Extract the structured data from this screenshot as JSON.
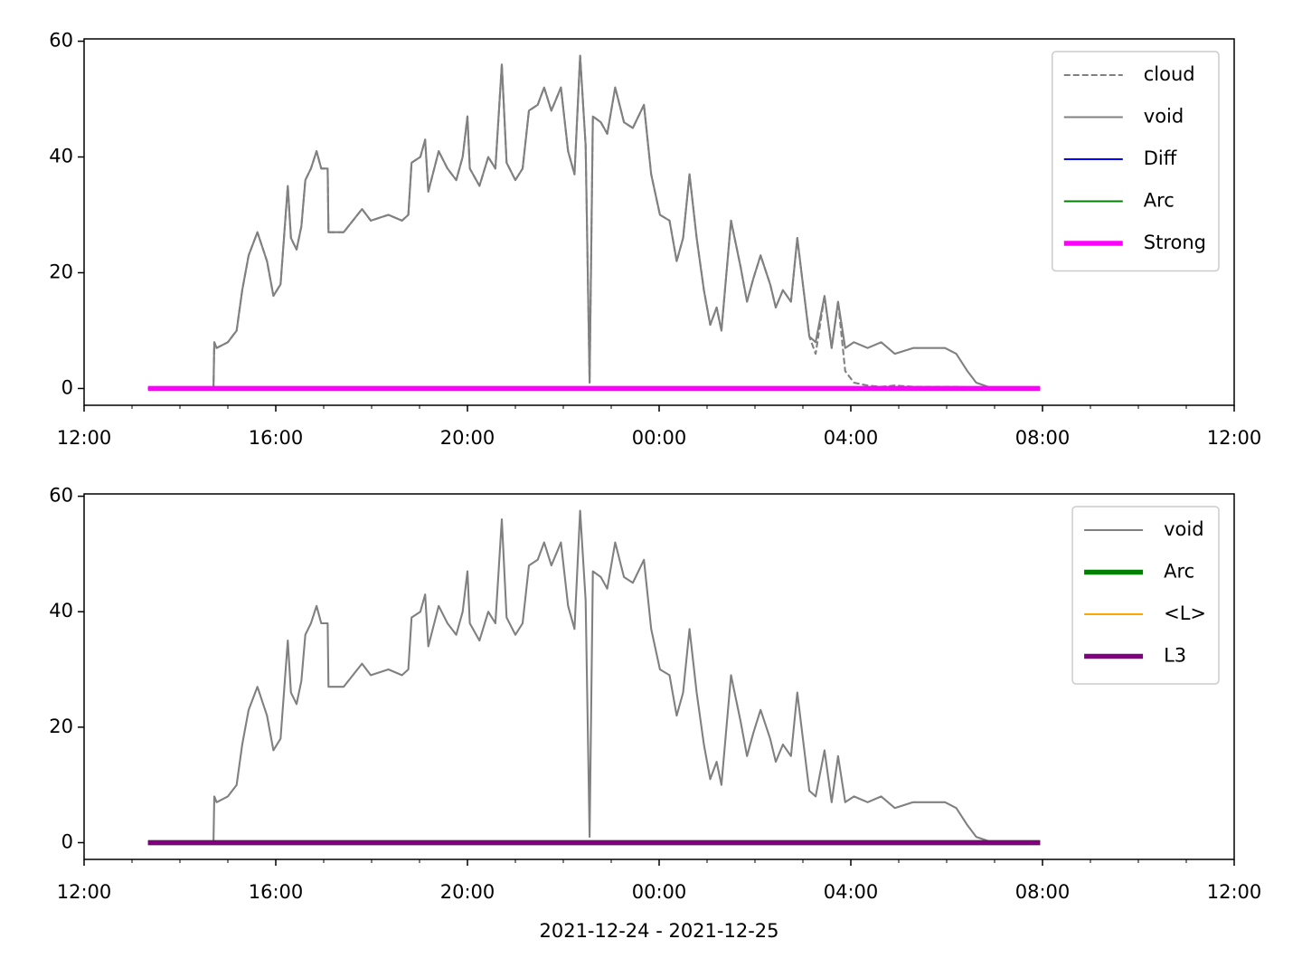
{
  "chart_data": [
    {
      "type": "line",
      "x": [
        "2021-12-24T13:20",
        "2021-12-24T14:42",
        "2021-12-24T14:43",
        "2021-12-24T14:46",
        "2021-12-24T15:00",
        "2021-12-24T15:11",
        "2021-12-24T15:18",
        "2021-12-24T15:26",
        "2021-12-24T15:37",
        "2021-12-24T15:49",
        "2021-12-24T15:57",
        "2021-12-24T16:06",
        "2021-12-24T16:15",
        "2021-12-24T16:19",
        "2021-12-24T16:26",
        "2021-12-24T16:32",
        "2021-12-24T16:37",
        "2021-12-24T16:44",
        "2021-12-24T16:51",
        "2021-12-24T16:57",
        "2021-12-24T17:05",
        "2021-12-24T17:06",
        "2021-12-24T17:25",
        "2021-12-24T17:48",
        "2021-12-24T17:59",
        "2021-12-24T18:21",
        "2021-12-24T18:38",
        "2021-12-24T18:46",
        "2021-12-24T18:50",
        "2021-12-24T19:01",
        "2021-12-24T19:07",
        "2021-12-24T19:11",
        "2021-12-24T19:24",
        "2021-12-24T19:35",
        "2021-12-24T19:46",
        "2021-12-24T19:54",
        "2021-12-24T20:00",
        "2021-12-24T20:03",
        "2021-12-24T20:15",
        "2021-12-24T20:26",
        "2021-12-24T20:35",
        "2021-12-24T20:43",
        "2021-12-24T20:49",
        "2021-12-24T21:00",
        "2021-12-24T21:09",
        "2021-12-24T21:17",
        "2021-12-24T21:28",
        "2021-12-24T21:36",
        "2021-12-24T21:45",
        "2021-12-24T21:57",
        "2021-12-24T22:06",
        "2021-12-24T22:14",
        "2021-12-24T22:21",
        "2021-12-24T22:28",
        "2021-12-24T22:33",
        "2021-12-24T22:37",
        "2021-12-24T22:47",
        "2021-12-24T22:55",
        "2021-12-24T23:05",
        "2021-12-24T23:16",
        "2021-12-24T23:27",
        "2021-12-24T23:41",
        "2021-12-24T23:50",
        "2021-12-25T00:01",
        "2021-12-25T00:13",
        "2021-12-25T00:22",
        "2021-12-25T00:30",
        "2021-12-25T00:38",
        "2021-12-25T00:47",
        "2021-12-25T00:56",
        "2021-12-25T01:04",
        "2021-12-25T01:12",
        "2021-12-25T01:18",
        "2021-12-25T01:30",
        "2021-12-25T01:42",
        "2021-12-25T01:50",
        "2021-12-25T01:58",
        "2021-12-25T02:07",
        "2021-12-25T02:19",
        "2021-12-25T02:26",
        "2021-12-25T02:35",
        "2021-12-25T02:45",
        "2021-12-25T02:53",
        "2021-12-25T03:00",
        "2021-12-25T03:08",
        "2021-12-25T03:16",
        "2021-12-25T03:27",
        "2021-12-25T03:36",
        "2021-12-25T03:44",
        "2021-12-25T03:53",
        "2021-12-25T04:04",
        "2021-12-25T04:21",
        "2021-12-25T04:38",
        "2021-12-25T04:55",
        "2021-12-25T05:18",
        "2021-12-25T05:41",
        "2021-12-25T05:58",
        "2021-12-25T06:12",
        "2021-12-25T06:26",
        "2021-12-25T06:37",
        "2021-12-25T06:54",
        "2021-12-25T07:57"
      ],
      "series": [
        {
          "name": "cloud",
          "color": "#808080",
          "linewidth": 1.5,
          "dashed": true,
          "values": [
            0,
            0,
            8,
            7,
            8,
            10,
            17,
            23,
            27,
            22,
            16,
            18,
            35,
            26,
            24,
            28,
            36,
            38,
            41,
            38,
            38,
            27,
            27,
            31,
            29,
            30,
            29,
            30,
            39,
            40,
            43,
            34,
            41,
            38,
            36,
            40,
            47,
            38,
            35,
            40,
            38,
            56,
            39,
            36,
            38,
            48,
            49,
            52,
            48,
            52,
            41,
            37,
            57.5,
            42,
            1,
            47,
            46,
            44,
            52,
            46,
            45,
            49,
            37,
            30,
            29,
            22,
            26,
            37,
            26,
            17,
            11,
            14,
            10,
            29,
            21,
            15,
            19,
            23,
            18,
            14,
            17,
            15,
            26,
            18,
            9,
            6,
            16,
            7,
            15,
            3,
            1,
            0.5,
            0.3,
            0.5,
            0.3,
            0.3,
            0.3,
            0.3,
            0.2,
            0.2,
            0.1,
            0
          ]
        },
        {
          "name": "void",
          "color": "#808080",
          "linewidth": 1.5,
          "dashed": false,
          "values": [
            0,
            0,
            8,
            7,
            8,
            10,
            17,
            23,
            27,
            22,
            16,
            18,
            35,
            26,
            24,
            28,
            36,
            38,
            41,
            38,
            38,
            27,
            27,
            31,
            29,
            30,
            29,
            30,
            39,
            40,
            43,
            34,
            41,
            38,
            36,
            40,
            47,
            38,
            35,
            40,
            38,
            56,
            39,
            36,
            38,
            48,
            49,
            52,
            48,
            52,
            41,
            37,
            57.5,
            42,
            1,
            47,
            46,
            44,
            52,
            46,
            45,
            49,
            37,
            30,
            29,
            22,
            26,
            37,
            26,
            17,
            11,
            14,
            10,
            29,
            21,
            15,
            19,
            23,
            18,
            14,
            17,
            15,
            26,
            18,
            9,
            8,
            16,
            7,
            15,
            7,
            8,
            7,
            8,
            6,
            7,
            7,
            7,
            6,
            3,
            1,
            0.2,
            0
          ]
        },
        {
          "name": "Diff",
          "color": "#0000ff",
          "linewidth": 1.5,
          "dashed": false,
          "x": [
            "2021-12-24T13:20",
            "2021-12-25T07:57"
          ],
          "values": [
            0,
            0
          ]
        },
        {
          "name": "Arc",
          "color": "#008000",
          "linewidth": 1.5,
          "dashed": false,
          "x": [
            "2021-12-24T13:20",
            "2021-12-25T07:57"
          ],
          "values": [
            0,
            0
          ]
        },
        {
          "name": "Strong",
          "color": "#ff00ff",
          "linewidth": 4,
          "dashed": false,
          "x": [
            "2021-12-24T13:20",
            "2021-12-25T07:57"
          ],
          "values": [
            0,
            0
          ]
        }
      ],
      "xlim": [
        "2021-12-24T12:00",
        "2021-12-25T12:00"
      ],
      "xticks": [
        {
          "value": "2021-12-24T12:00",
          "label": "12:00"
        },
        {
          "value": "2021-12-24T16:00",
          "label": "16:00"
        },
        {
          "value": "2021-12-24T20:00",
          "label": "20:00"
        },
        {
          "value": "2021-12-25T00:00",
          "label": "00:00"
        },
        {
          "value": "2021-12-25T04:00",
          "label": "04:00"
        },
        {
          "value": "2021-12-25T08:00",
          "label": "08:00"
        },
        {
          "value": "2021-12-25T12:00",
          "label": "12:00"
        }
      ],
      "xminorticks": [
        "2021-12-24T13:00",
        "2021-12-24T14:00",
        "2021-12-24T15:00",
        "2021-12-24T17:00",
        "2021-12-24T18:00",
        "2021-12-24T19:00",
        "2021-12-24T21:00",
        "2021-12-24T22:00",
        "2021-12-24T23:00",
        "2021-12-25T01:00",
        "2021-12-25T02:00",
        "2021-12-25T03:00",
        "2021-12-25T05:00",
        "2021-12-25T06:00",
        "2021-12-25T07:00",
        "2021-12-25T09:00",
        "2021-12-25T10:00",
        "2021-12-25T11:00"
      ],
      "ylim": [
        -2.9,
        60.4
      ],
      "yticks": [
        0,
        20,
        40,
        60
      ],
      "legend": "upper right"
    },
    {
      "type": "line",
      "x": [
        "2021-12-24T13:20",
        "2021-12-24T14:42",
        "2021-12-24T14:43",
        "2021-12-24T14:46",
        "2021-12-24T15:00",
        "2021-12-24T15:11",
        "2021-12-24T15:18",
        "2021-12-24T15:26",
        "2021-12-24T15:37",
        "2021-12-24T15:49",
        "2021-12-24T15:57",
        "2021-12-24T16:06",
        "2021-12-24T16:15",
        "2021-12-24T16:19",
        "2021-12-24T16:26",
        "2021-12-24T16:32",
        "2021-12-24T16:37",
        "2021-12-24T16:44",
        "2021-12-24T16:51",
        "2021-12-24T16:57",
        "2021-12-24T17:05",
        "2021-12-24T17:06",
        "2021-12-24T17:25",
        "2021-12-24T17:48",
        "2021-12-24T17:59",
        "2021-12-24T18:21",
        "2021-12-24T18:38",
        "2021-12-24T18:46",
        "2021-12-24T18:50",
        "2021-12-24T19:01",
        "2021-12-24T19:07",
        "2021-12-24T19:11",
        "2021-12-24T19:24",
        "2021-12-24T19:35",
        "2021-12-24T19:46",
        "2021-12-24T19:54",
        "2021-12-24T20:00",
        "2021-12-24T20:03",
        "2021-12-24T20:15",
        "2021-12-24T20:26",
        "2021-12-24T20:35",
        "2021-12-24T20:43",
        "2021-12-24T20:49",
        "2021-12-24T21:00",
        "2021-12-24T21:09",
        "2021-12-24T21:17",
        "2021-12-24T21:28",
        "2021-12-24T21:36",
        "2021-12-24T21:45",
        "2021-12-24T21:57",
        "2021-12-24T22:06",
        "2021-12-24T22:14",
        "2021-12-24T22:21",
        "2021-12-24T22:28",
        "2021-12-24T22:33",
        "2021-12-24T22:37",
        "2021-12-24T22:47",
        "2021-12-24T22:55",
        "2021-12-24T23:05",
        "2021-12-24T23:16",
        "2021-12-24T23:27",
        "2021-12-24T23:41",
        "2021-12-24T23:50",
        "2021-12-25T00:01",
        "2021-12-25T00:13",
        "2021-12-25T00:22",
        "2021-12-25T00:30",
        "2021-12-25T00:38",
        "2021-12-25T00:47",
        "2021-12-25T00:56",
        "2021-12-25T01:04",
        "2021-12-25T01:12",
        "2021-12-25T01:18",
        "2021-12-25T01:30",
        "2021-12-25T01:42",
        "2021-12-25T01:50",
        "2021-12-25T01:58",
        "2021-12-25T02:07",
        "2021-12-25T02:19",
        "2021-12-25T02:26",
        "2021-12-25T02:35",
        "2021-12-25T02:45",
        "2021-12-25T02:53",
        "2021-12-25T03:00",
        "2021-12-25T03:08",
        "2021-12-25T03:16",
        "2021-12-25T03:27",
        "2021-12-25T03:36",
        "2021-12-25T03:44",
        "2021-12-25T03:53",
        "2021-12-25T04:04",
        "2021-12-25T04:21",
        "2021-12-25T04:38",
        "2021-12-25T04:55",
        "2021-12-25T05:18",
        "2021-12-25T05:41",
        "2021-12-25T05:58",
        "2021-12-25T06:12",
        "2021-12-25T06:26",
        "2021-12-25T06:37",
        "2021-12-25T06:54",
        "2021-12-25T07:57"
      ],
      "series": [
        {
          "name": "void",
          "color": "#808080",
          "linewidth": 1.5,
          "dashed": false,
          "values": [
            0,
            0,
            8,
            7,
            8,
            10,
            17,
            23,
            27,
            22,
            16,
            18,
            35,
            26,
            24,
            28,
            36,
            38,
            41,
            38,
            38,
            27,
            27,
            31,
            29,
            30,
            29,
            30,
            39,
            40,
            43,
            34,
            41,
            38,
            36,
            40,
            47,
            38,
            35,
            40,
            38,
            56,
            39,
            36,
            38,
            48,
            49,
            52,
            48,
            52,
            41,
            37,
            57.5,
            42,
            1,
            47,
            46,
            44,
            52,
            46,
            45,
            49,
            37,
            30,
            29,
            22,
            26,
            37,
            26,
            17,
            11,
            14,
            10,
            29,
            21,
            15,
            19,
            23,
            18,
            14,
            17,
            15,
            26,
            18,
            9,
            8,
            16,
            7,
            15,
            7,
            8,
            7,
            8,
            6,
            7,
            7,
            7,
            6,
            3,
            1,
            0.2,
            0
          ]
        },
        {
          "name": "Arc",
          "color": "#008000",
          "linewidth": 4,
          "dashed": false,
          "x": [
            "2021-12-24T13:20",
            "2021-12-25T07:57"
          ],
          "values": [
            0,
            0
          ]
        },
        {
          "name": "<L>",
          "color": "#ffa500",
          "linewidth": 1.5,
          "dashed": false,
          "x": [
            "2021-12-24T13:20",
            "2021-12-25T07:57"
          ],
          "values": [
            0,
            0
          ]
        },
        {
          "name": "L3",
          "color": "#800080",
          "linewidth": 4,
          "dashed": false,
          "x": [
            "2021-12-24T13:20",
            "2021-12-25T07:57"
          ],
          "values": [
            0,
            0
          ]
        }
      ],
      "xlabel": "2021-12-24 - 2021-12-25",
      "xlim": [
        "2021-12-24T12:00",
        "2021-12-25T12:00"
      ],
      "xticks": [
        {
          "value": "2021-12-24T12:00",
          "label": "12:00"
        },
        {
          "value": "2021-12-24T16:00",
          "label": "16:00"
        },
        {
          "value": "2021-12-24T20:00",
          "label": "20:00"
        },
        {
          "value": "2021-12-25T00:00",
          "label": "00:00"
        },
        {
          "value": "2021-12-25T04:00",
          "label": "04:00"
        },
        {
          "value": "2021-12-25T08:00",
          "label": "08:00"
        },
        {
          "value": "2021-12-25T12:00",
          "label": "12:00"
        }
      ],
      "xminorticks": [
        "2021-12-24T13:00",
        "2021-12-24T14:00",
        "2021-12-24T15:00",
        "2021-12-24T17:00",
        "2021-12-24T18:00",
        "2021-12-24T19:00",
        "2021-12-24T21:00",
        "2021-12-24T22:00",
        "2021-12-24T23:00",
        "2021-12-25T01:00",
        "2021-12-25T02:00",
        "2021-12-25T03:00",
        "2021-12-25T05:00",
        "2021-12-25T06:00",
        "2021-12-25T07:00",
        "2021-12-25T09:00",
        "2021-12-25T10:00",
        "2021-12-25T11:00"
      ],
      "ylim": [
        -2.9,
        60.4
      ],
      "yticks": [
        0,
        20,
        40,
        60
      ],
      "legend": "upper right"
    }
  ]
}
